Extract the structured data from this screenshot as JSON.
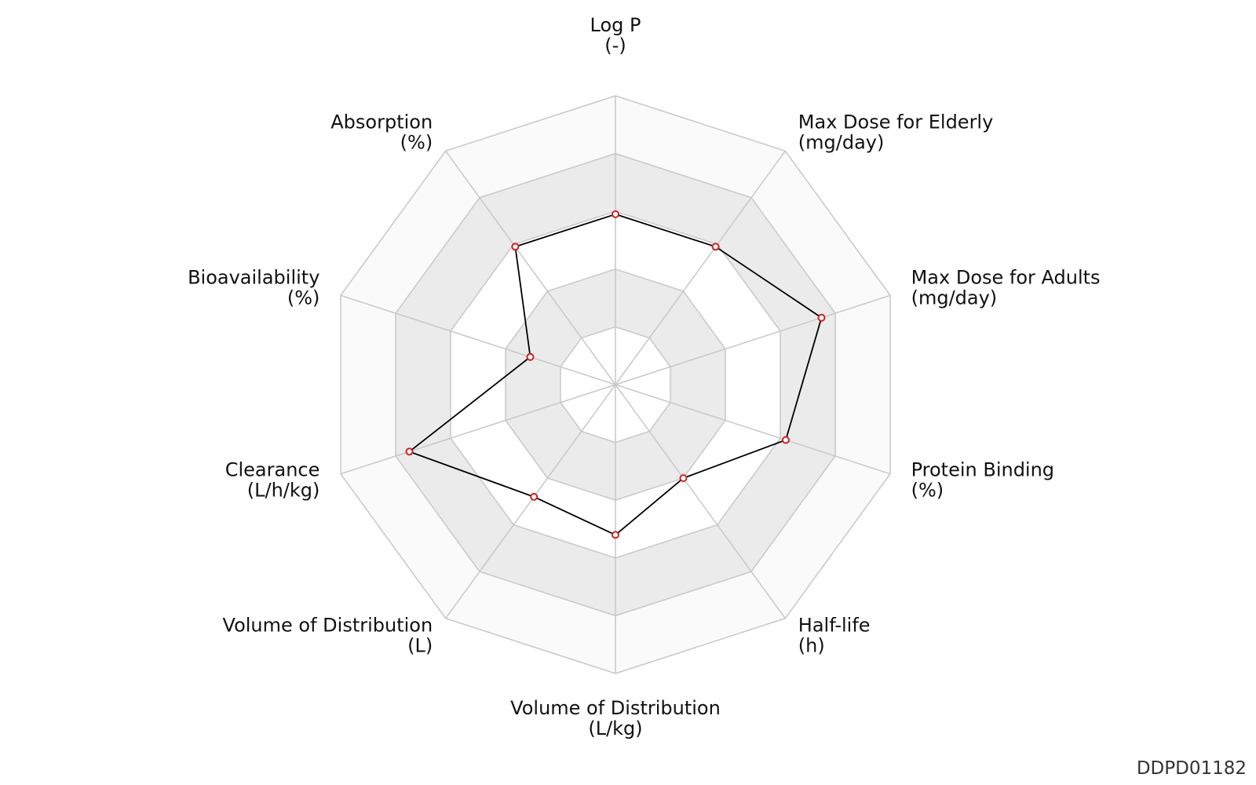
{
  "chart_data": {
    "type": "radar",
    "title": "",
    "axes": [
      {
        "name": "Log P",
        "unit": "(-)"
      },
      {
        "name": "Max Dose for Elderly",
        "unit": "(mg/day)"
      },
      {
        "name": "Max Dose for Adults",
        "unit": "(mg/day)"
      },
      {
        "name": "Protein Binding",
        "unit": "(%)"
      },
      {
        "name": "Half-life",
        "unit": "(h)"
      },
      {
        "name": "Volume of Distribution",
        "unit": "(L/kg)"
      },
      {
        "name": "Volume of Distribution",
        "unit": "(L)"
      },
      {
        "name": "Clearance",
        "unit": "(L/h/kg)"
      },
      {
        "name": "Bioavailability",
        "unit": "(%)"
      },
      {
        "name": "Absorption",
        "unit": "(%)"
      }
    ],
    "series": [
      {
        "values": [
          0.59,
          0.59,
          0.75,
          0.62,
          0.4,
          0.52,
          0.48,
          0.75,
          0.31,
          0.59
        ]
      }
    ],
    "range": [
      0,
      1
    ],
    "rings": 5,
    "band_colors": [
      "#ffffff",
      "#ebebeb",
      "#ffffff",
      "#ebebeb",
      "#fafafa"
    ],
    "grid_color": "#c8c8c8",
    "line_color": "#000000",
    "marker_color": "#cc2222"
  },
  "watermark": "DDPD01182"
}
